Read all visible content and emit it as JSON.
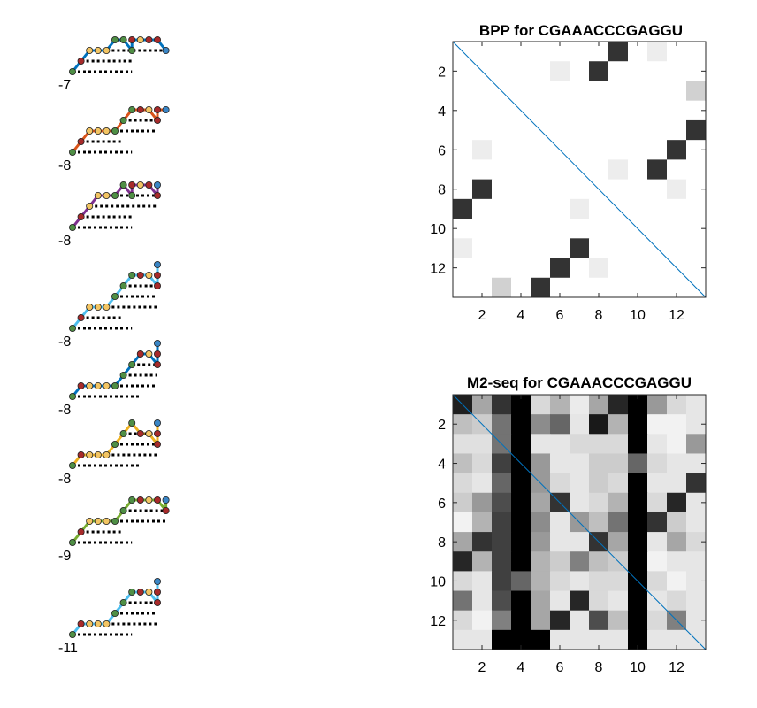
{
  "colors": {
    "blue": "#0072BD",
    "orange": "#D95319",
    "yellow": "#EDB120",
    "purple": "#7E2F8E",
    "green": "#77AC30",
    "lightblue": "#4DBEEE",
    "node_yellow": "#F3C563",
    "node_red": "#A82A2A",
    "node_green": "#4F8F45",
    "node_blue": "#3A86C6",
    "diag": "#0072BD"
  },
  "chart_data": [
    {
      "type": "diagram",
      "sequence": "CGAAACCCGAGGU",
      "node_colors_by_base": {
        "C": "node_green",
        "G": "node_red",
        "A": "node_yellow",
        "U": "node_blue"
      },
      "structures": [
        {
          "energy": "-7",
          "color": "blue",
          "pairs": [
            [
              1,
              9
            ],
            [
              2,
              8
            ],
            [
              5,
              13
            ]
          ]
        },
        {
          "energy": "-8",
          "color": "orange",
          "pairs": [
            [
              1,
              8
            ],
            [
              2,
              7
            ],
            [
              6,
              12
            ],
            [
              7,
              11
            ]
          ]
        },
        {
          "energy": "-8",
          "color": "purple",
          "pairs": [
            [
              1,
              9
            ],
            [
              2,
              8
            ],
            [
              3,
              13
            ],
            [
              6,
              12
            ]
          ]
        },
        {
          "energy": "-8",
          "color": "lightblue",
          "pairs": [
            [
              1,
              8
            ],
            [
              2,
              7
            ],
            [
              5,
              13
            ],
            [
              6,
              12
            ],
            [
              7,
              11
            ]
          ]
        },
        {
          "energy": "-8",
          "color": "blue",
          "pairs": [
            [
              1,
              9
            ],
            [
              6,
              13
            ],
            [
              7,
              12
            ],
            [
              8,
              11
            ]
          ]
        },
        {
          "energy": "-8",
          "color": "yellow",
          "pairs": [
            [
              1,
              9
            ],
            [
              5,
              13
            ],
            [
              6,
              12
            ],
            [
              7,
              11
            ]
          ]
        },
        {
          "energy": "-9",
          "color": "green",
          "pairs": [
            [
              1,
              8
            ],
            [
              2,
              7
            ],
            [
              6,
              13
            ],
            [
              7,
              12
            ]
          ]
        },
        {
          "energy": "-11",
          "color": "lightblue",
          "pairs": [
            [
              1,
              8
            ],
            [
              5,
              13
            ],
            [
              6,
              12
            ],
            [
              7,
              11
            ]
          ]
        }
      ]
    },
    {
      "type": "heatmap",
      "title": "BPP for CGAAACCCGAGGU",
      "xticks": [
        2,
        4,
        6,
        8,
        10,
        12
      ],
      "yticks": [
        2,
        4,
        6,
        8,
        10,
        12
      ],
      "xlim": [
        0.5,
        13.5
      ],
      "ylim": [
        0.5,
        13.5
      ],
      "diagonal": true,
      "matrix": [
        [
          0,
          0,
          0,
          0,
          0,
          0,
          0,
          0,
          0.8,
          0,
          0.07,
          0,
          0
        ],
        [
          0,
          0,
          0,
          0,
          0,
          0.07,
          0,
          0.8,
          0,
          0,
          0,
          0,
          0
        ],
        [
          0,
          0,
          0,
          0,
          0,
          0,
          0,
          0,
          0,
          0,
          0,
          0,
          0.18
        ],
        [
          0,
          0,
          0,
          0,
          0,
          0,
          0,
          0,
          0,
          0,
          0,
          0,
          0
        ],
        [
          0,
          0,
          0,
          0,
          0,
          0,
          0,
          0,
          0,
          0,
          0,
          0,
          0.8
        ],
        [
          0,
          0.07,
          0,
          0,
          0,
          0,
          0,
          0,
          0,
          0,
          0,
          0.8,
          0
        ],
        [
          0,
          0,
          0,
          0,
          0,
          0,
          0,
          0,
          0.07,
          0,
          0.8,
          0,
          0
        ],
        [
          0,
          0.8,
          0,
          0,
          0,
          0,
          0,
          0,
          0,
          0,
          0,
          0.07,
          0
        ],
        [
          0.8,
          0,
          0,
          0,
          0,
          0,
          0.07,
          0,
          0,
          0,
          0,
          0,
          0
        ],
        [
          0,
          0,
          0,
          0,
          0,
          0,
          0,
          0,
          0,
          0,
          0,
          0,
          0
        ],
        [
          0.07,
          0,
          0,
          0,
          0,
          0,
          0.8,
          0,
          0,
          0,
          0,
          0,
          0
        ],
        [
          0,
          0,
          0,
          0,
          0,
          0.8,
          0,
          0.07,
          0,
          0,
          0,
          0,
          0
        ],
        [
          0,
          0,
          0.18,
          0,
          0.8,
          0,
          0,
          0,
          0,
          0,
          0,
          0,
          0
        ]
      ]
    },
    {
      "type": "heatmap",
      "title": "M2-seq for CGAAACCCGAGGU",
      "xticks": [
        2,
        4,
        6,
        8,
        10,
        12
      ],
      "yticks": [
        2,
        4,
        6,
        8,
        10,
        12
      ],
      "xlim": [
        0.5,
        13.5
      ],
      "ylim": [
        0.5,
        13.5
      ],
      "diagonal": true,
      "matrix": [
        [
          0.88,
          0.35,
          0.8,
          1.0,
          0.15,
          0.3,
          0.08,
          0.35,
          0.85,
          1.0,
          0.4,
          0.15,
          0.1
        ],
        [
          0.25,
          0.2,
          0.55,
          1.0,
          0.45,
          0.6,
          0.1,
          0.9,
          0.3,
          1.0,
          0.05,
          0.05,
          0.1
        ],
        [
          0.12,
          0.12,
          0.55,
          1.0,
          0.1,
          0.1,
          0.15,
          0.15,
          0.15,
          1.0,
          0.1,
          0.05,
          0.4
        ],
        [
          0.25,
          0.15,
          0.75,
          1.0,
          0.4,
          0.1,
          0.1,
          0.2,
          0.2,
          0.6,
          0.15,
          0.1,
          0.1
        ],
        [
          0.15,
          0.1,
          0.6,
          1.0,
          0.4,
          0.15,
          0.1,
          0.2,
          0.15,
          1.0,
          0.1,
          0.1,
          0.8
        ],
        [
          0.2,
          0.4,
          0.7,
          1.0,
          0.35,
          0.8,
          0.1,
          0.15,
          0.3,
          1.0,
          0.15,
          0.85,
          0.1
        ],
        [
          0.05,
          0.3,
          0.75,
          1.0,
          0.45,
          0.1,
          0.4,
          0.25,
          0.55,
          1.0,
          0.8,
          0.2,
          0.1
        ],
        [
          0.35,
          0.8,
          0.75,
          1.0,
          0.4,
          0.1,
          0.1,
          0.8,
          0.35,
          1.0,
          0.1,
          0.35,
          0.15
        ],
        [
          0.85,
          0.3,
          0.75,
          1.0,
          0.3,
          0.2,
          0.5,
          0.25,
          0.2,
          1.0,
          0.05,
          0.1,
          0.1
        ],
        [
          0.15,
          0.1,
          0.75,
          0.6,
          0.3,
          0.15,
          0.1,
          0.15,
          0.15,
          1.0,
          0.15,
          0.05,
          0.1
        ],
        [
          0.55,
          0.1,
          0.7,
          1.0,
          0.35,
          0.1,
          0.85,
          0.15,
          0.1,
          1.0,
          0.1,
          0.15,
          0.1
        ],
        [
          0.15,
          0.05,
          0.5,
          1.0,
          0.35,
          0.85,
          0.1,
          0.7,
          0.25,
          1.0,
          0.15,
          0.5,
          0.1
        ],
        [
          0.1,
          0.1,
          1.0,
          1.0,
          1.0,
          0.1,
          0.1,
          0.1,
          0.1,
          1.0,
          0.1,
          0.1,
          0.1
        ]
      ]
    }
  ]
}
